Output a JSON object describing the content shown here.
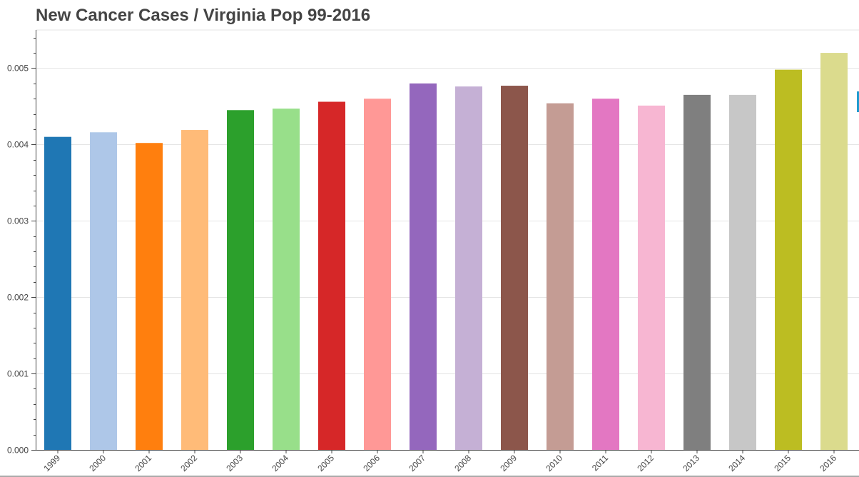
{
  "chart_data": {
    "type": "bar",
    "title": "New Cancer Cases / Virginia Pop 99-2016",
    "xlabel": "",
    "ylabel": "",
    "ylim": [
      0,
      0.0055
    ],
    "y_ticks": [
      "0.000",
      "0.001",
      "0.002",
      "0.003",
      "0.004",
      "0.005"
    ],
    "y_tick_values": [
      0,
      0.001,
      0.002,
      0.003,
      0.004,
      0.005
    ],
    "grid": true,
    "legend": "none",
    "categories": [
      "1999",
      "2000",
      "2001",
      "2002",
      "2003",
      "2004",
      "2005",
      "2006",
      "2007",
      "2008",
      "2009",
      "2010",
      "2011",
      "2012",
      "2013",
      "2014",
      "2015",
      "2016"
    ],
    "values": [
      0.0041,
      0.00416,
      0.00402,
      0.00419,
      0.00445,
      0.00447,
      0.00456,
      0.0046,
      0.0048,
      0.00476,
      0.00477,
      0.00454,
      0.0046,
      0.00451,
      0.00465,
      0.00465,
      0.00498,
      0.0052
    ],
    "colors": [
      "#1f77b4",
      "#aec7e8",
      "#ff7f0e",
      "#ffbb78",
      "#2ca02c",
      "#98df8a",
      "#d62728",
      "#ff9896",
      "#9467bd",
      "#c5b0d5",
      "#8c564b",
      "#c49c94",
      "#e377c2",
      "#f7b6d2",
      "#7f7f7f",
      "#c7c7c7",
      "#bcbd22",
      "#dbdb8d"
    ],
    "accent_color": "#1f9bcf"
  }
}
